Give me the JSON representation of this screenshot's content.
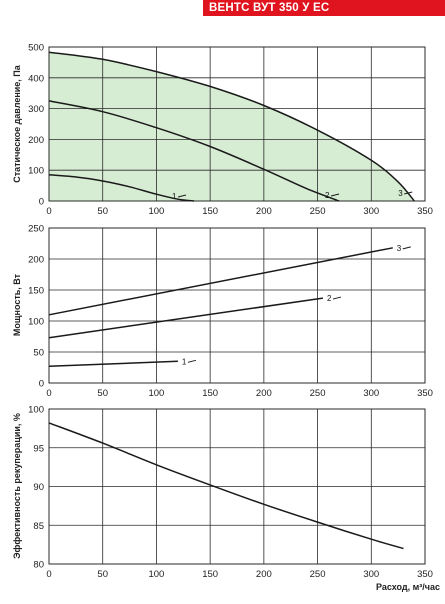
{
  "header": {
    "title": "ВЕНТС ВУТ 350 У ЕС"
  },
  "colors": {
    "title_bg": "#e0141e",
    "area_fill": "#d7edd3",
    "line": "#1a1a1a",
    "grid": "#2a2a2a"
  },
  "chart_data": [
    {
      "type": "line",
      "ylabel": "Статическое давление, Па",
      "xlabel": "",
      "xlim": [
        0,
        350
      ],
      "ylim": [
        0,
        500
      ],
      "xticks": [
        0,
        50,
        100,
        150,
        200,
        250,
        300,
        350
      ],
      "yticks": [
        0,
        100,
        200,
        300,
        400,
        500
      ],
      "xtick_labels": [
        "0",
        "50",
        "100",
        "150",
        "200",
        "250",
        "300",
        "350"
      ],
      "ytick_labels": [
        "0",
        "100",
        "200",
        "300",
        "400",
        "500"
      ],
      "shaded_under_series": "3",
      "grid": true,
      "series": [
        {
          "name": "1",
          "x": [
            0,
            25,
            50,
            75,
            100,
            120,
            135
          ],
          "y": [
            85,
            78,
            65,
            46,
            22,
            6,
            0
          ]
        },
        {
          "name": "2",
          "x": [
            0,
            50,
            100,
            150,
            200,
            240,
            270
          ],
          "y": [
            325,
            290,
            238,
            177,
            103,
            40,
            0
          ]
        },
        {
          "name": "3",
          "x": [
            0,
            50,
            100,
            150,
            200,
            250,
            300,
            325,
            340
          ],
          "y": [
            483,
            460,
            420,
            372,
            310,
            230,
            132,
            62,
            0
          ]
        }
      ]
    },
    {
      "type": "line",
      "ylabel": "Мощность, Вт",
      "xlabel": "",
      "xlim": [
        0,
        350
      ],
      "ylim": [
        0,
        250
      ],
      "xticks": [
        0,
        50,
        100,
        150,
        200,
        250,
        300,
        350
      ],
      "yticks": [
        0,
        50,
        100,
        150,
        200,
        250
      ],
      "xtick_labels": [
        "0",
        "50",
        "100",
        "150",
        "200",
        "250",
        "300",
        "350"
      ],
      "ytick_labels": [
        "0",
        "50",
        "100",
        "150",
        "200",
        "250"
      ],
      "grid": true,
      "series": [
        {
          "name": "1",
          "x": [
            0,
            120
          ],
          "y": [
            27,
            35
          ]
        },
        {
          "name": "2",
          "x": [
            0,
            255
          ],
          "y": [
            73,
            137
          ]
        },
        {
          "name": "3",
          "x": [
            0,
            320
          ],
          "y": [
            110,
            218
          ]
        }
      ]
    },
    {
      "type": "line",
      "ylabel": "Эффективность рекуперации, %",
      "xlabel": "Расход, м³/час",
      "xlim": [
        0,
        350
      ],
      "ylim": [
        80,
        100
      ],
      "xticks": [
        0,
        50,
        100,
        150,
        200,
        250,
        300,
        350
      ],
      "yticks": [
        80,
        85,
        90,
        95,
        100
      ],
      "xtick_labels": [
        "0",
        "50",
        "100",
        "150",
        "200",
        "250",
        "300",
        "350"
      ],
      "ytick_labels": [
        "80",
        "85",
        "90",
        "95",
        "100"
      ],
      "grid": true,
      "series": [
        {
          "x": [
            0,
            50,
            100,
            150,
            200,
            250,
            300,
            330
          ],
          "y": [
            98.2,
            95.6,
            92.8,
            90.2,
            87.7,
            85.4,
            83.2,
            82.0
          ]
        }
      ]
    }
  ]
}
